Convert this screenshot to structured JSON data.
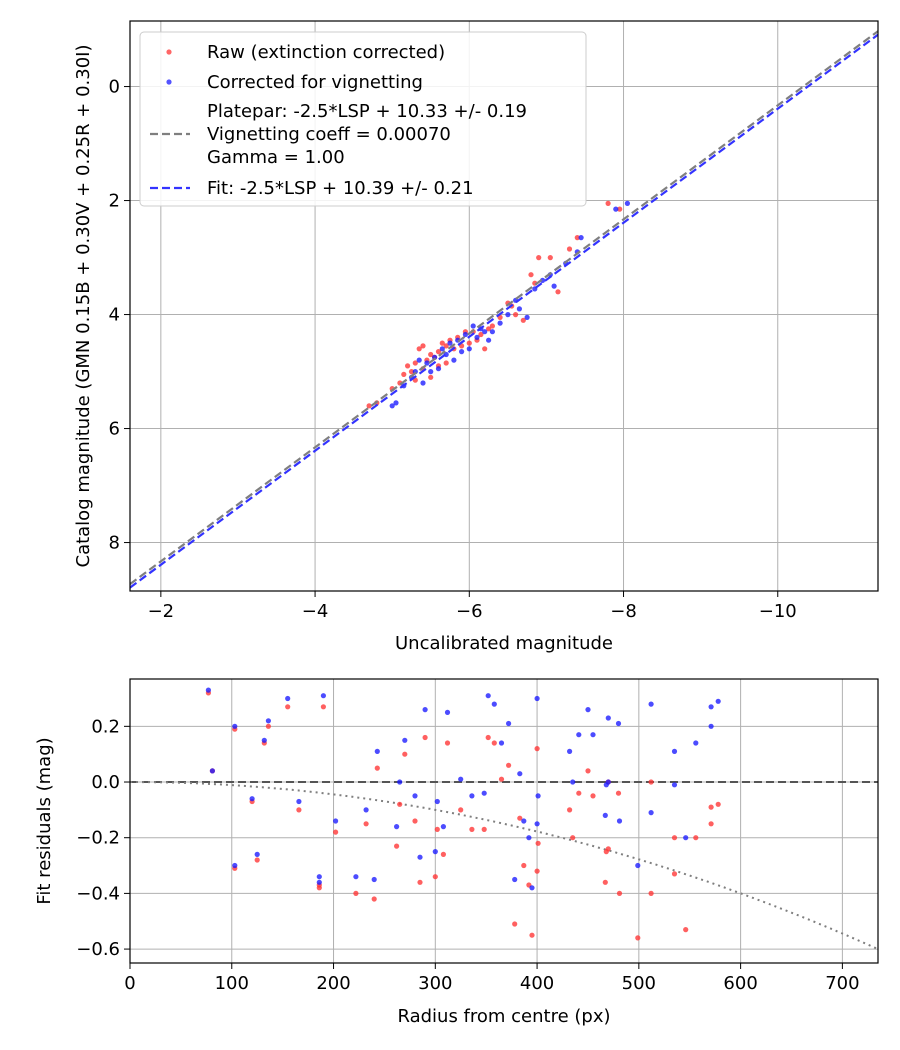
{
  "chart_data": [
    {
      "type": "scatter",
      "xlabel": "Uncalibrated magnitude",
      "ylabel": "Catalog magnitude (GMN 0.15B + 0.30V + 0.25R + 0.30I)",
      "xlim": [
        -1.6,
        -11.3
      ],
      "ylim": [
        8.85,
        -1.15
      ],
      "x_inverted": true,
      "y_inverted": true,
      "grid": true,
      "xticks": [
        -2,
        -4,
        -6,
        -8,
        -10
      ],
      "xtick_labels": [
        "−2",
        "−4",
        "−6",
        "−8",
        "−10"
      ],
      "yticks": [
        0,
        2,
        4,
        6,
        8
      ],
      "ytick_labels": [
        "0",
        "2",
        "4",
        "6",
        "8"
      ],
      "legend_position": "top-left",
      "legend": {
        "raw": "Raw (extinction corrected)",
        "corrected": "Corrected for vignetting",
        "platepar_line1": "Platepar: -2.5*LSP + 10.33 +/- 0.19",
        "platepar_line2": "Vignetting coeff = 0.00070",
        "platepar_line3": "Gamma = 1.00",
        "fit": "Fit: -2.5*LSP + 10.39 +/- 0.21"
      },
      "lines": [
        {
          "name": "Platepar",
          "slope": 1.0,
          "intercept": 10.33,
          "color": "#7f7f7f",
          "style": "dashed"
        },
        {
          "name": "Fit",
          "slope": 1.0,
          "intercept": 10.39,
          "color": "#3333ff",
          "style": "dashed"
        }
      ],
      "series": [
        {
          "name": "Raw (extinction corrected)",
          "color": "#ff3333",
          "points": [
            [
              -4.7,
              5.6
            ],
            [
              -4.8,
              5.55
            ],
            [
              -5.0,
              5.3
            ],
            [
              -5.1,
              5.2
            ],
            [
              -5.15,
              5.05
            ],
            [
              -5.2,
              4.9
            ],
            [
              -5.25,
              5.0
            ],
            [
              -5.3,
              4.85
            ],
            [
              -5.3,
              5.15
            ],
            [
              -5.35,
              4.6
            ],
            [
              -5.4,
              4.55
            ],
            [
              -5.4,
              4.95
            ],
            [
              -5.45,
              4.8
            ],
            [
              -5.5,
              4.7
            ],
            [
              -5.5,
              5.1
            ],
            [
              -5.55,
              4.75
            ],
            [
              -5.6,
              4.65
            ],
            [
              -5.6,
              4.9
            ],
            [
              -5.65,
              4.5
            ],
            [
              -5.7,
              4.55
            ],
            [
              -5.7,
              4.85
            ],
            [
              -5.75,
              4.45
            ],
            [
              -5.8,
              4.6
            ],
            [
              -5.85,
              4.4
            ],
            [
              -5.9,
              4.55
            ],
            [
              -5.95,
              4.3
            ],
            [
              -6.0,
              4.5
            ],
            [
              -6.05,
              4.3
            ],
            [
              -6.1,
              4.45
            ],
            [
              -6.15,
              4.35
            ],
            [
              -6.2,
              4.6
            ],
            [
              -6.25,
              4.25
            ],
            [
              -6.3,
              4.2
            ],
            [
              -6.4,
              4.05
            ],
            [
              -6.5,
              3.8
            ],
            [
              -6.55,
              3.85
            ],
            [
              -6.6,
              4.0
            ],
            [
              -6.7,
              4.1
            ],
            [
              -6.8,
              3.3
            ],
            [
              -6.85,
              3.45
            ],
            [
              -6.9,
              3.0
            ],
            [
              -7.05,
              3.0
            ],
            [
              -7.15,
              3.6
            ],
            [
              -7.3,
              2.85
            ],
            [
              -7.4,
              2.65
            ],
            [
              -7.8,
              2.05
            ],
            [
              -7.95,
              2.15
            ]
          ]
        },
        {
          "name": "Corrected for vignetting",
          "color": "#1a1aff",
          "points": [
            [
              -5.0,
              5.6
            ],
            [
              -5.05,
              5.55
            ],
            [
              -5.15,
              5.25
            ],
            [
              -5.25,
              5.1
            ],
            [
              -5.3,
              5.0
            ],
            [
              -5.35,
              4.8
            ],
            [
              -5.4,
              5.2
            ],
            [
              -5.45,
              4.85
            ],
            [
              -5.5,
              5.0
            ],
            [
              -5.55,
              4.75
            ],
            [
              -5.6,
              4.95
            ],
            [
              -5.65,
              4.6
            ],
            [
              -5.7,
              4.7
            ],
            [
              -5.75,
              4.5
            ],
            [
              -5.8,
              4.8
            ],
            [
              -5.85,
              4.45
            ],
            [
              -5.9,
              4.65
            ],
            [
              -5.95,
              4.35
            ],
            [
              -6.0,
              4.6
            ],
            [
              -6.05,
              4.2
            ],
            [
              -6.1,
              4.4
            ],
            [
              -6.15,
              4.25
            ],
            [
              -6.2,
              4.3
            ],
            [
              -6.25,
              4.45
            ],
            [
              -6.3,
              4.3
            ],
            [
              -6.4,
              4.15
            ],
            [
              -6.5,
              4.0
            ],
            [
              -6.6,
              3.75
            ],
            [
              -6.65,
              3.9
            ],
            [
              -6.75,
              4.05
            ],
            [
              -6.85,
              3.55
            ],
            [
              -6.95,
              3.4
            ],
            [
              -7.05,
              3.3
            ],
            [
              -7.1,
              3.5
            ],
            [
              -7.25,
              3.1
            ],
            [
              -7.4,
              2.9
            ],
            [
              -7.45,
              2.65
            ],
            [
              -7.9,
              2.15
            ],
            [
              -8.05,
              2.05
            ]
          ]
        }
      ]
    },
    {
      "type": "scatter",
      "xlabel": "Radius from centre (px)",
      "ylabel": "Fit residuals (mag)",
      "xlim": [
        0,
        735
      ],
      "ylim": [
        -0.65,
        0.37
      ],
      "grid": true,
      "xticks": [
        0,
        100,
        200,
        300,
        400,
        500,
        600,
        700
      ],
      "xtick_labels": [
        "0",
        "100",
        "200",
        "300",
        "400",
        "500",
        "600",
        "700"
      ],
      "yticks": [
        0.2,
        0.0,
        -0.2,
        -0.4,
        -0.6
      ],
      "ytick_labels": [
        "0.2",
        "0.0",
        "−0.2",
        "−0.4",
        "−0.6"
      ],
      "lines": [
        {
          "name": "zero",
          "type": "horizontal",
          "value": 0.0,
          "color": "#555555",
          "style": "dashed"
        },
        {
          "name": "vignetting model",
          "type": "curve",
          "coeff": 0.0007,
          "color": "#7f7f7f",
          "style": "dotted"
        }
      ],
      "series": [
        {
          "name": "Raw (extinction corrected)",
          "color": "#ff3333",
          "points": [
            [
              77,
              0.32
            ],
            [
              81,
              0.04
            ],
            [
              103,
              0.19
            ],
            [
              103,
              -0.31
            ],
            [
              120,
              -0.07
            ],
            [
              125,
              -0.28
            ],
            [
              132,
              0.14
            ],
            [
              136,
              0.2
            ],
            [
              155,
              0.27
            ],
            [
              166,
              -0.1
            ],
            [
              186,
              -0.38
            ],
            [
              186,
              -0.37
            ],
            [
              190,
              0.27
            ],
            [
              202,
              -0.18
            ],
            [
              222,
              -0.4
            ],
            [
              232,
              -0.15
            ],
            [
              240,
              -0.42
            ],
            [
              243,
              0.05
            ],
            [
              262,
              -0.23
            ],
            [
              265,
              -0.08
            ],
            [
              270,
              0.1
            ],
            [
              280,
              -0.14
            ],
            [
              285,
              -0.36
            ],
            [
              290,
              0.16
            ],
            [
              300,
              -0.34
            ],
            [
              302,
              -0.17
            ],
            [
              308,
              -0.26
            ],
            [
              312,
              0.14
            ],
            [
              325,
              -0.1
            ],
            [
              336,
              -0.17
            ],
            [
              348,
              -0.17
            ],
            [
              352,
              0.16
            ],
            [
              358,
              0.14
            ],
            [
              365,
              0.01
            ],
            [
              372,
              0.06
            ],
            [
              378,
              -0.51
            ],
            [
              383,
              -0.13
            ],
            [
              387,
              -0.3
            ],
            [
              392,
              -0.37
            ],
            [
              395,
              -0.55
            ],
            [
              400,
              -0.32
            ],
            [
              401,
              -0.22
            ],
            [
              400,
              0.12
            ],
            [
              432,
              -0.1
            ],
            [
              435,
              -0.2
            ],
            [
              441,
              -0.04
            ],
            [
              450,
              0.04
            ],
            [
              455,
              -0.05
            ],
            [
              467,
              -0.36
            ],
            [
              468,
              -0.25
            ],
            [
              470,
              -0.24
            ],
            [
              470,
              0
            ],
            [
              480,
              -0.04
            ],
            [
              481,
              -0.4
            ],
            [
              499,
              -0.56
            ],
            [
              512,
              -0.4
            ],
            [
              512,
              0
            ],
            [
              535,
              -0.2
            ],
            [
              535,
              -0.33
            ],
            [
              546,
              -0.53
            ],
            [
              556,
              -0.2
            ],
            [
              571,
              -0.15
            ],
            [
              571,
              -0.09
            ],
            [
              578,
              -0.08
            ]
          ]
        },
        {
          "name": "Corrected for vignetting",
          "color": "#1a1aff",
          "points": [
            [
              77,
              0.33
            ],
            [
              81,
              0.04
            ],
            [
              103,
              0.2
            ],
            [
              103,
              -0.3
            ],
            [
              120,
              -0.06
            ],
            [
              125,
              -0.26
            ],
            [
              132,
              0.15
            ],
            [
              136,
              0.22
            ],
            [
              155,
              0.3
            ],
            [
              166,
              -0.07
            ],
            [
              186,
              -0.34
            ],
            [
              186,
              -0.36
            ],
            [
              190,
              0.31
            ],
            [
              202,
              -0.14
            ],
            [
              222,
              -0.34
            ],
            [
              232,
              -0.1
            ],
            [
              240,
              -0.35
            ],
            [
              243,
              0.11
            ],
            [
              262,
              -0.16
            ],
            [
              265,
              0.0
            ],
            [
              270,
              0.15
            ],
            [
              280,
              -0.05
            ],
            [
              285,
              -0.27
            ],
            [
              290,
              0.26
            ],
            [
              300,
              -0.25
            ],
            [
              302,
              -0.07
            ],
            [
              308,
              -0.16
            ],
            [
              312,
              0.25
            ],
            [
              325,
              0.01
            ],
            [
              336,
              -0.05
            ],
            [
              348,
              -0.04
            ],
            [
              352,
              0.31
            ],
            [
              358,
              0.28
            ],
            [
              365,
              0.14
            ],
            [
              372,
              0.21
            ],
            [
              378,
              -0.35
            ],
            [
              383,
              0.03
            ],
            [
              387,
              -0.14
            ],
            [
              392,
              -0.2
            ],
            [
              395,
              -0.38
            ],
            [
              400,
              -0.15
            ],
            [
              401,
              -0.05
            ],
            [
              400,
              0.3
            ],
            [
              432,
              0.11
            ],
            [
              435,
              0
            ],
            [
              441,
              0.17
            ],
            [
              450,
              0.26
            ],
            [
              455,
              0.17
            ],
            [
              467,
              -0.12
            ],
            [
              468,
              -0.01
            ],
            [
              470,
              0
            ],
            [
              470,
              0.23
            ],
            [
              480,
              0.21
            ],
            [
              481,
              -0.14
            ],
            [
              499,
              -0.3
            ],
            [
              512,
              -0.11
            ],
            [
              512,
              0.28
            ],
            [
              535,
              0.11
            ],
            [
              535,
              -0.01
            ],
            [
              546,
              -0.2
            ],
            [
              556,
              0.14
            ],
            [
              571,
              0.2
            ],
            [
              571,
              0.27
            ],
            [
              578,
              0.29
            ]
          ]
        }
      ]
    }
  ]
}
